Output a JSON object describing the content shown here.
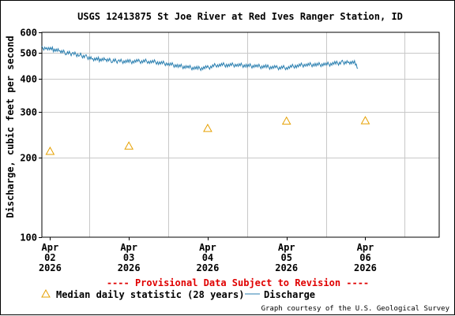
{
  "chart_data": {
    "type": "line",
    "title": "USGS 12413875 St Joe River at Red Ives Ranger Station, ID",
    "ylabel": "Discharge, cubic feet per second",
    "yscale": "log",
    "ylim": [
      100,
      600
    ],
    "y_ticks": [
      100,
      200,
      300,
      400,
      500,
      600
    ],
    "y_tick_labels": [
      "100",
      "200",
      "300",
      "400",
      "500",
      "600"
    ],
    "xlim": [
      "2026-04-01T21:30",
      "2026-04-06T22:30"
    ],
    "x_ticks": [
      {
        "x": "2026-04-02T00:00",
        "label": [
          "Apr",
          "02",
          "2026"
        ]
      },
      {
        "x": "2026-04-03T00:00",
        "label": [
          "Apr",
          "03",
          "2026"
        ]
      },
      {
        "x": "2026-04-04T00:00",
        "label": [
          "Apr",
          "04",
          "2026"
        ]
      },
      {
        "x": "2026-04-05T00:00",
        "label": [
          "Apr",
          "05",
          "2026"
        ]
      },
      {
        "x": "2026-04-06T00:00",
        "label": [
          "Apr",
          "06",
          "2026"
        ]
      }
    ],
    "grid": true,
    "series": [
      {
        "name": "Discharge",
        "color": "#2a7fb0",
        "points": [
          [
            "2026-04-01T21:30",
            522
          ],
          [
            "2026-04-01T23:00",
            525
          ],
          [
            "2026-04-02T01:00",
            516
          ],
          [
            "2026-04-02T03:00",
            508
          ],
          [
            "2026-04-02T05:00",
            501
          ],
          [
            "2026-04-02T07:00",
            497
          ],
          [
            "2026-04-02T09:00",
            492
          ],
          [
            "2026-04-02T11:00",
            484
          ],
          [
            "2026-04-02T13:00",
            477
          ],
          [
            "2026-04-02T15:00",
            473
          ],
          [
            "2026-04-02T17:00",
            471
          ],
          [
            "2026-04-02T19:00",
            468
          ],
          [
            "2026-04-02T21:00",
            466
          ],
          [
            "2026-04-03T00:00",
            464
          ],
          [
            "2026-04-03T03:00",
            465
          ],
          [
            "2026-04-03T06:00",
            466
          ],
          [
            "2026-04-03T09:00",
            461
          ],
          [
            "2026-04-03T12:00",
            455
          ],
          [
            "2026-04-03T15:00",
            447
          ],
          [
            "2026-04-03T18:00",
            442
          ],
          [
            "2026-04-03T21:00",
            437
          ],
          [
            "2026-04-04T00:00",
            440
          ],
          [
            "2026-04-04T03:00",
            452
          ],
          [
            "2026-04-04T06:00",
            451
          ],
          [
            "2026-04-04T09:00",
            451
          ],
          [
            "2026-04-04T12:00",
            448
          ],
          [
            "2026-04-04T15:00",
            446
          ],
          [
            "2026-04-04T18:00",
            443
          ],
          [
            "2026-04-04T21:00",
            440
          ],
          [
            "2026-04-05T00:00",
            441
          ],
          [
            "2026-04-05T03:00",
            448
          ],
          [
            "2026-04-05T06:00",
            452
          ],
          [
            "2026-04-05T09:00",
            452
          ],
          [
            "2026-04-05T12:00",
            453
          ],
          [
            "2026-04-05T15:00",
            457
          ],
          [
            "2026-04-05T17:00",
            461
          ],
          [
            "2026-04-05T19:00",
            463
          ],
          [
            "2026-04-05T21:00",
            459
          ],
          [
            "2026-04-05T21:45",
            437
          ]
        ]
      },
      {
        "name": "Median daily statistic (28 years)",
        "color": "#e6a000",
        "marker": "triangle",
        "points": [
          [
            "2026-04-02T00:00",
            212
          ],
          [
            "2026-04-03T00:00",
            222
          ],
          [
            "2026-04-04T00:00",
            259
          ],
          [
            "2026-04-05T00:00",
            276
          ],
          [
            "2026-04-06T00:00",
            277
          ]
        ]
      }
    ],
    "legend": [
      "Median daily statistic (28 years)",
      "Discharge"
    ],
    "legend_position": "bottom",
    "annotation": "---- Provisional Data Subject to Revision ----",
    "credit": "Graph courtesy of the U.S. Geological Survey"
  }
}
